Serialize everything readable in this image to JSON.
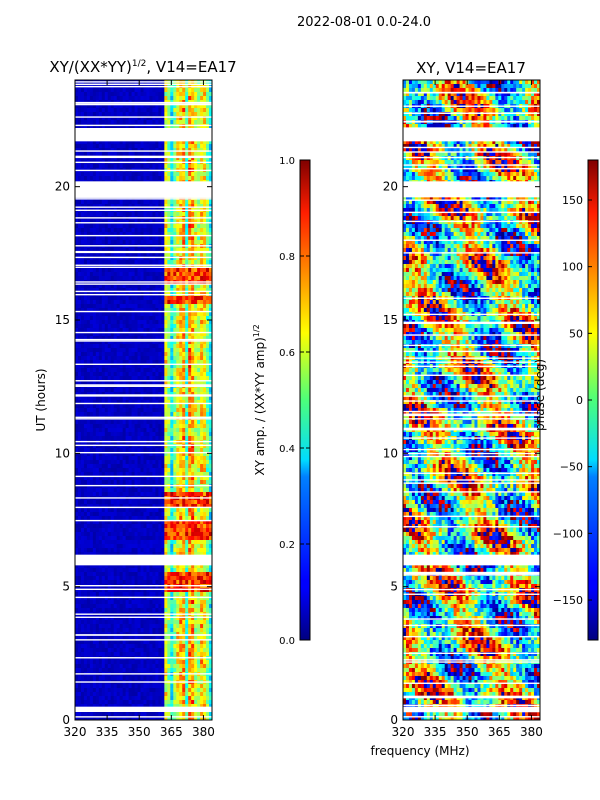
{
  "figure_title": "2022-08-01 0.0-24.0",
  "chart_data": [
    {
      "type": "heatmap",
      "title": "XY/(XX*YY)",
      "title_sup": "1/2",
      "title_suffix": ", V14=EA17",
      "xlabel": "",
      "ylabel": "UT (hours)",
      "xlim": [
        320,
        384
      ],
      "ylim": [
        0,
        24
      ],
      "xticks": [
        320,
        335,
        350,
        365,
        380
      ],
      "yticks": [
        0,
        5,
        10,
        15,
        20
      ],
      "colorbar": {
        "label": "XY amp. / (XX*YY amp)",
        "label_sup": "1/2",
        "range": [
          0.0,
          1.0
        ],
        "ticks": [
          "0.0",
          "0.2",
          "0.4",
          "0.6",
          "0.8",
          "1.0"
        ],
        "colormap": "jet"
      },
      "bright_channels_mhz": [
        363,
        367.5,
        369,
        371,
        373.5,
        375,
        377,
        379.5,
        381
      ],
      "high_amplitude_hours": [
        [
          16.3,
          17.0
        ],
        [
          15.6,
          15.9
        ],
        [
          8.0,
          8.5
        ],
        [
          6.7,
          7.5
        ],
        [
          4.8,
          5.5
        ]
      ],
      "flagged_hours": [
        [
          21.7,
          22.2
        ],
        [
          19.6,
          20.2
        ],
        [
          5.8,
          6.2
        ],
        [
          0.3,
          0.5
        ]
      ]
    },
    {
      "type": "heatmap",
      "title": "XY, V14=EA17",
      "xlabel": "frequency (MHz)",
      "ylabel": "",
      "xlim": [
        320,
        384
      ],
      "ylim": [
        0,
        24
      ],
      "xticks": [
        320,
        335,
        350,
        365,
        380
      ],
      "yticks": [
        0,
        5,
        10,
        15,
        20
      ],
      "colorbar": {
        "label": "phase (deg)",
        "range": [
          -180,
          180
        ],
        "ticks": [
          "150",
          "100",
          "50",
          "0",
          "−50",
          "−100",
          "−150"
        ],
        "tick_values": [
          150,
          100,
          50,
          0,
          -50,
          -100,
          -150
        ],
        "colormap": "jet"
      },
      "flagged_hours": [
        [
          21.7,
          22.2
        ],
        [
          19.6,
          20.2
        ],
        [
          5.8,
          6.2
        ],
        [
          0.3,
          0.5
        ]
      ]
    }
  ]
}
